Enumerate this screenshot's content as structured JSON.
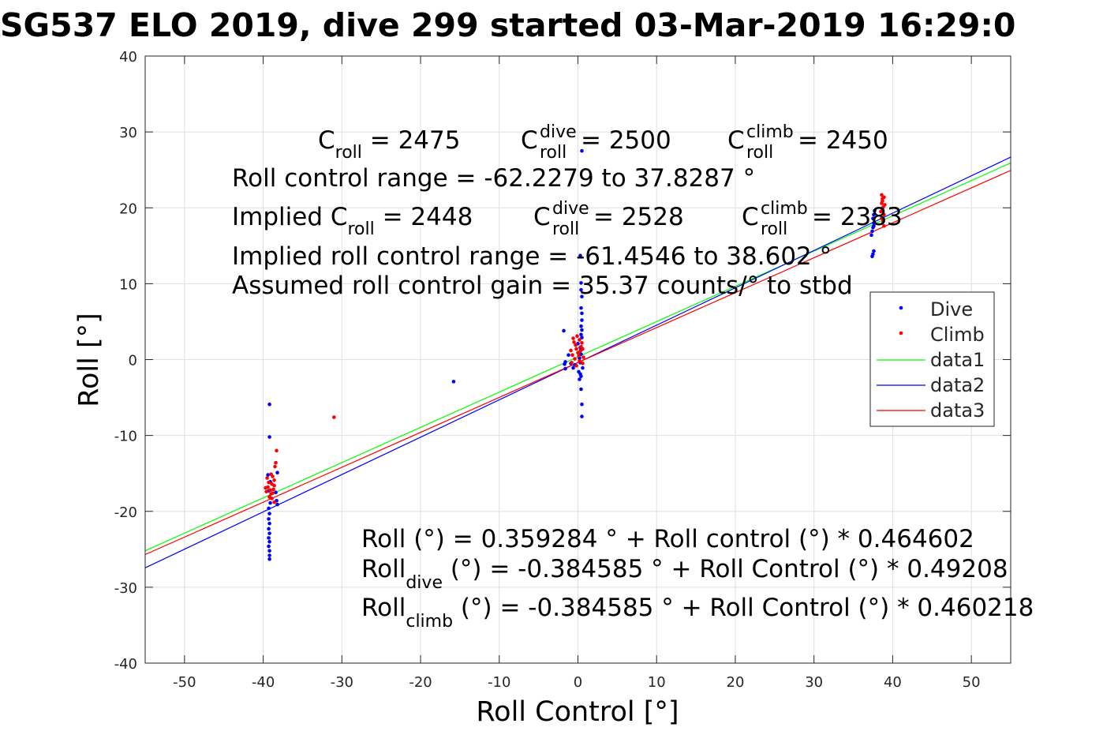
{
  "chart_data": {
    "type": "scatter",
    "title": "SG537 ELO 2019, dive 299 started 03-Mar-2019 16:29:0",
    "xlabel": "Roll Control [°]",
    "ylabel": "Roll [°]",
    "xlim": [
      -55,
      55
    ],
    "ylim": [
      -40,
      40
    ],
    "xticks": [
      -50,
      -40,
      -30,
      -20,
      -10,
      0,
      10,
      20,
      30,
      40,
      50
    ],
    "yticks": [
      -40,
      -30,
      -20,
      -10,
      0,
      10,
      20,
      30,
      40
    ],
    "grid": true,
    "legend": {
      "placement": "right",
      "entries": [
        {
          "name": "Dive",
          "kind": "marker",
          "color": "#0000ff"
        },
        {
          "name": "Climb",
          "kind": "marker",
          "color": "#ff0000"
        },
        {
          "name": "data1",
          "kind": "line",
          "color": "#00ff00"
        },
        {
          "name": "data2",
          "kind": "line",
          "color": "#0000ff"
        },
        {
          "name": "data3",
          "kind": "line",
          "color": "#ff0000"
        }
      ]
    },
    "series": [
      {
        "name": "Dive",
        "kind": "scatter",
        "color": "#0000ff",
        "points": [
          [
            -39.2,
            -5.9
          ],
          [
            -39.2,
            -10.2
          ],
          [
            -39.4,
            -15.2
          ],
          [
            -39.1,
            -16.1
          ],
          [
            -39.3,
            -17.3
          ],
          [
            -39.2,
            -18.1
          ],
          [
            -39.1,
            -18.9
          ],
          [
            -39.3,
            -19.6
          ],
          [
            -39.2,
            -20.3
          ],
          [
            -39.3,
            -21.0
          ],
          [
            -39.2,
            -21.6
          ],
          [
            -39.3,
            -22.3
          ],
          [
            -39.2,
            -22.9
          ],
          [
            -39.3,
            -23.5
          ],
          [
            -39.2,
            -24.0
          ],
          [
            -39.3,
            -24.6
          ],
          [
            -39.2,
            -25.2
          ],
          [
            -39.2,
            -25.8
          ],
          [
            -39.2,
            -26.3
          ],
          [
            -38.2,
            -14.9
          ],
          [
            -38.4,
            -17.5
          ],
          [
            -38.3,
            -18.6
          ],
          [
            -38.2,
            -19.1
          ],
          [
            -15.8,
            -2.9
          ],
          [
            -1.8,
            3.8
          ],
          [
            -1.6,
            -0.3
          ],
          [
            -1.7,
            -0.6
          ],
          [
            -1.6,
            -1.2
          ],
          [
            -1.2,
            0.6
          ],
          [
            -0.9,
            -0.5
          ],
          [
            -0.6,
            -1.1
          ],
          [
            -0.4,
            -0.7
          ],
          [
            0.1,
            -1.6
          ],
          [
            0.2,
            -2.6
          ],
          [
            0.4,
            -2.2
          ],
          [
            0.0,
            2.1
          ],
          [
            0.3,
            1.6
          ],
          [
            0.2,
            0.2
          ],
          [
            0.3,
            -0.4
          ],
          [
            0.4,
            0.7
          ],
          [
            0.5,
            27.5
          ],
          [
            0.3,
            13.7
          ],
          [
            0.4,
            10.1
          ],
          [
            0.4,
            9.2
          ],
          [
            0.5,
            8.3
          ],
          [
            0.4,
            6.8
          ],
          [
            0.5,
            6.1
          ],
          [
            0.5,
            5.2
          ],
          [
            0.4,
            4.4
          ],
          [
            0.5,
            3.9
          ],
          [
            0.4,
            3.3
          ],
          [
            0.5,
            2.9
          ],
          [
            0.4,
            1.3
          ],
          [
            0.4,
            -3.9
          ],
          [
            0.5,
            -5.9
          ],
          [
            0.5,
            -7.5
          ],
          [
            0.6,
            -1.1
          ],
          [
            0.3,
            -1.9
          ],
          [
            37.3,
            16.4
          ],
          [
            37.4,
            16.9
          ],
          [
            37.5,
            17.4
          ],
          [
            37.6,
            18.0
          ],
          [
            37.5,
            18.6
          ],
          [
            37.6,
            19.1
          ],
          [
            37.7,
            19.6
          ],
          [
            37.6,
            17.6
          ],
          [
            37.5,
            13.9
          ],
          [
            37.4,
            13.6
          ],
          [
            37.6,
            14.3
          ]
        ]
      },
      {
        "name": "Climb",
        "kind": "scatter",
        "color": "#ff0000",
        "points": [
          [
            -39.3,
            -16.2
          ],
          [
            -39.4,
            -16.8
          ],
          [
            -39.1,
            -17.2
          ],
          [
            -39.0,
            -17.7
          ],
          [
            -39.5,
            -15.6
          ],
          [
            -39.2,
            -18.1
          ],
          [
            -38.9,
            -16.4
          ],
          [
            -38.8,
            -15.4
          ],
          [
            -38.6,
            -15.9
          ],
          [
            -38.7,
            -17.1
          ],
          [
            -38.5,
            -14.1
          ],
          [
            -38.4,
            -13.6
          ],
          [
            -38.3,
            -12.0
          ],
          [
            -38.6,
            -16.6
          ],
          [
            -38.8,
            -17.6
          ],
          [
            -38.9,
            -18.3
          ],
          [
            -39.0,
            -15.1
          ],
          [
            -38.6,
            -18.8
          ],
          [
            -39.6,
            -17.4
          ],
          [
            -39.7,
            -16.9
          ],
          [
            -31.0,
            -7.6
          ],
          [
            -0.6,
            2.8
          ],
          [
            -0.5,
            2.3
          ],
          [
            -0.3,
            1.9
          ],
          [
            -0.2,
            1.4
          ],
          [
            0.0,
            0.9
          ],
          [
            0.1,
            0.5
          ],
          [
            -0.4,
            0.1
          ],
          [
            0.2,
            -0.2
          ],
          [
            0.3,
            1.1
          ],
          [
            0.4,
            1.7
          ],
          [
            0.5,
            2.2
          ],
          [
            -0.7,
            0.6
          ],
          [
            -0.8,
            -0.4
          ],
          [
            0.6,
            -0.5
          ],
          [
            0.7,
            0.3
          ],
          [
            0.2,
            2.6
          ],
          [
            -0.2,
            -0.8
          ],
          [
            -0.9,
            1.2
          ],
          [
            0.6,
            1.4
          ],
          [
            -0.1,
            3.1
          ],
          [
            38.6,
            21.7
          ],
          [
            38.7,
            21.2
          ],
          [
            38.6,
            20.6
          ],
          [
            38.8,
            20.1
          ],
          [
            38.7,
            19.7
          ],
          [
            38.9,
            19.1
          ],
          [
            38.6,
            18.6
          ],
          [
            38.8,
            18.2
          ],
          [
            38.9,
            17.6
          ],
          [
            38.7,
            20.9
          ],
          [
            38.5,
            19.5
          ],
          [
            39.0,
            20.4
          ],
          [
            38.9,
            21.4
          ]
        ]
      },
      {
        "name": "data1",
        "kind": "line",
        "color": "#00ff00",
        "intercept": 0.359284,
        "slope": 0.464602
      },
      {
        "name": "data2",
        "kind": "line",
        "color": "#0000ff",
        "intercept": -0.384585,
        "slope": 0.49208
      },
      {
        "name": "data3",
        "kind": "line",
        "color": "#ff0000",
        "intercept": -0.384585,
        "slope": 0.460218
      }
    ],
    "annotations": {
      "c_roll": {
        "base": "C",
        "sub": "roll",
        "value": " = 2475"
      },
      "c_dive": {
        "base": "C",
        "sup": "dive",
        "sub": "roll",
        "value": " = 2500"
      },
      "c_climb": {
        "base": "C",
        "sup": "climb",
        "sub": "roll",
        "value": " = 2450"
      },
      "range": "Roll control range = -62.2279 to 37.8287 °",
      "implied_prefix": "Implied C",
      "implied_sub": "roll",
      "implied_value": " = 2448",
      "implied_dive": {
        "base": "C",
        "sup": "dive",
        "sub": "roll",
        "value": " = 2528"
      },
      "implied_climb": {
        "base": "C",
        "sup": "climb",
        "sub": "roll",
        "value": " = 2383"
      },
      "implied_range": "Implied roll control range = -61.4546 to 38.602 °",
      "gain": "Assumed roll control gain = 35.37 counts/° to stbd",
      "fit_all": "Roll (°) = 0.359284 ° + Roll control (°) * 0.464602",
      "fit_dive_base": "Roll",
      "fit_dive_sub": "dive",
      "fit_dive_rest": " (°) = -0.384585 ° + Roll Control (°) * 0.49208",
      "fit_climb_base": "Roll",
      "fit_climb_sub": "climb",
      "fit_climb_rest": " (°) = -0.384585 ° + Roll Control (°) * 0.460218"
    }
  }
}
